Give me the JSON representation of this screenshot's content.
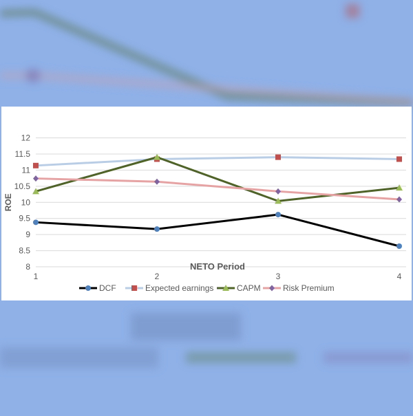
{
  "chart_data": {
    "type": "line",
    "title": "",
    "xlabel": "NETO Period",
    "ylabel": "ROE",
    "categories": [
      "1",
      "2",
      "3",
      "4"
    ],
    "ylim": [
      8,
      12
    ],
    "yticks": [
      "8",
      "8.5",
      "9",
      "9.5",
      "10",
      "10.5",
      "11",
      "11.5",
      "12"
    ],
    "grid": true,
    "legend_position": "bottom",
    "series": [
      {
        "name": "DCF",
        "values": [
          9.38,
          9.17,
          9.62,
          8.64
        ],
        "color": "#000000",
        "marker": "circle",
        "marker_color": "#4f81bd"
      },
      {
        "name": "Expected earnings",
        "values": [
          11.14,
          11.34,
          11.4,
          11.34
        ],
        "color": "#b9cde5",
        "marker": "square",
        "marker_color": "#c0504d"
      },
      {
        "name": "CAPM",
        "values": [
          10.34,
          11.4,
          10.04,
          10.45
        ],
        "color": "#4f6228",
        "marker": "triangle",
        "marker_color": "#9bbb59"
      },
      {
        "name": "Risk Premium",
        "values": [
          10.74,
          10.64,
          10.34,
          10.09
        ],
        "color": "#e6a3a3",
        "marker": "diamond",
        "marker_color": "#8064a2"
      }
    ]
  }
}
